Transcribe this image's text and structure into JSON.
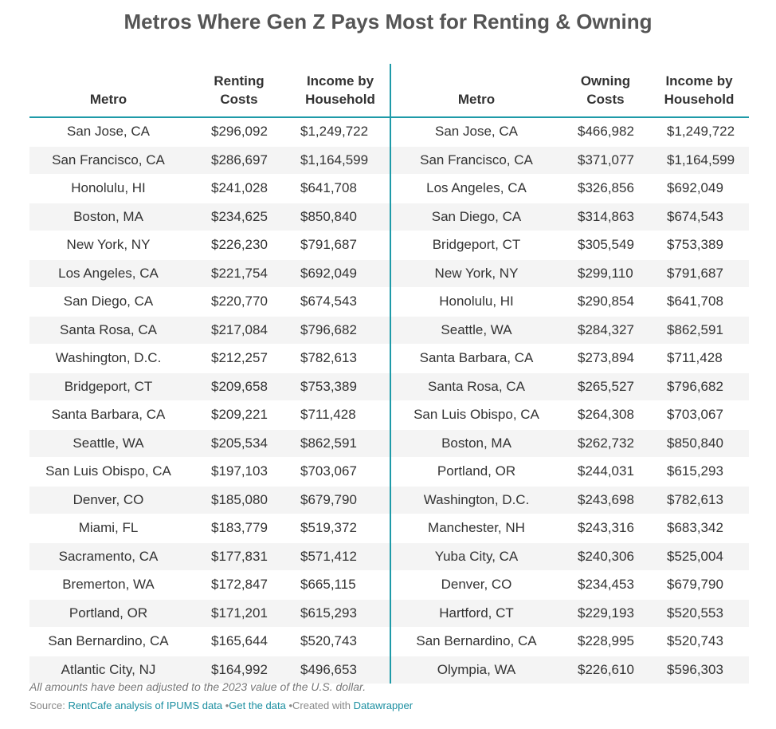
{
  "header": {
    "title": "Metros Where Gen Z Pays Most for Renting & Owning"
  },
  "table": {
    "columns": [
      "Metro",
      "Renting Costs",
      "Income by Household",
      "Metro",
      "Owning Costs",
      "Income by Household"
    ],
    "rows": [
      [
        "San Jose, CA",
        "$296,092",
        "$1,249,722",
        "San Jose, CA",
        "$466,982",
        "$1,249,722"
      ],
      [
        "San Francisco, CA",
        "$286,697",
        "$1,164,599",
        "San Francisco, CA",
        "$371,077",
        "$1,164,599"
      ],
      [
        "Honolulu, HI",
        "$241,028",
        "$641,708",
        "Los Angeles, CA",
        "$326,856",
        "$692,049"
      ],
      [
        "Boston, MA",
        "$234,625",
        "$850,840",
        "San Diego, CA",
        "$314,863",
        "$674,543"
      ],
      [
        "New York, NY",
        "$226,230",
        "$791,687",
        "Bridgeport, CT",
        "$305,549",
        "$753,389"
      ],
      [
        "Los Angeles, CA",
        "$221,754",
        "$692,049",
        "New York, NY",
        "$299,110",
        "$791,687"
      ],
      [
        "San Diego, CA",
        "$220,770",
        "$674,543",
        "Honolulu, HI",
        "$290,854",
        "$641,708"
      ],
      [
        "Santa Rosa, CA",
        "$217,084",
        "$796,682",
        "Seattle, WA",
        "$284,327",
        "$862,591"
      ],
      [
        "Washington, D.C.",
        "$212,257",
        "$782,613",
        "Santa Barbara, CA",
        "$273,894",
        "$711,428"
      ],
      [
        "Bridgeport, CT",
        "$209,658",
        "$753,389",
        "Santa Rosa, CA",
        "$265,527",
        "$796,682"
      ],
      [
        "Santa Barbara, CA",
        "$209,221",
        "$711,428",
        "San Luis Obispo, CA",
        "$264,308",
        "$703,067"
      ],
      [
        "Seattle, WA",
        "$205,534",
        "$862,591",
        "Boston, MA",
        "$262,732",
        "$850,840"
      ],
      [
        "San Luis Obispo, CA",
        "$197,103",
        "$703,067",
        "Portland, OR",
        "$244,031",
        "$615,293"
      ],
      [
        "Denver, CO",
        "$185,080",
        "$679,790",
        "Washington, D.C.",
        "$243,698",
        "$782,613"
      ],
      [
        "Miami, FL",
        "$183,779",
        "$519,372",
        "Manchester, NH",
        "$243,316",
        "$683,342"
      ],
      [
        "Sacramento, CA",
        "$177,831",
        "$571,412",
        "Yuba City, CA",
        "$240,306",
        "$525,004"
      ],
      [
        "Bremerton, WA",
        "$172,847",
        "$665,115",
        "Denver, CO",
        "$234,453",
        "$679,790"
      ],
      [
        "Portland, OR",
        "$171,201",
        "$615,293",
        "Hartford, CT",
        "$229,193",
        "$520,553"
      ],
      [
        "San Bernardino, CA",
        "$165,644",
        "$520,743",
        "San Bernardino, CA",
        "$228,995",
        "$520,743"
      ],
      [
        "Atlantic City, NJ",
        "$164,992",
        "$496,653",
        "Olympia, WA",
        "$226,610",
        "$596,303"
      ]
    ]
  },
  "footer": {
    "note": "All amounts have been adjusted to the 2023 value of the U.S. dollar.",
    "source_prefix": "Source:",
    "source_link": "RentCafe analysis of IPUMS data",
    "get_data": "Get the data",
    "created_with": "Created with",
    "datawrapper": "Datawrapper"
  }
}
